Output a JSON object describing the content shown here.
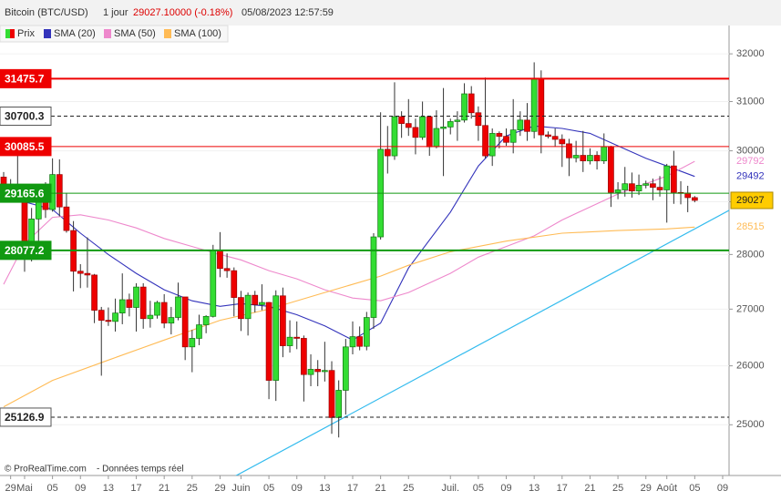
{
  "header": {
    "title": "Bitcoin (BTC/USD)",
    "period": "1 jour",
    "price": "29027.10000 (-0.18%)",
    "datetime": "05/08/2023 12:57:59"
  },
  "footer": {
    "source": "© ProRealTime.com",
    "note": "- Données temps réel"
  },
  "chart_data": {
    "type": "candlestick",
    "name": "Prix",
    "log": true,
    "grid": true,
    "up_color": "#33dd33",
    "down_color": "#ee0000",
    "dates": [
      "2023-04-28",
      "2023-04-29",
      "2023-04-30",
      "2023-05-01",
      "2023-05-02",
      "2023-05-03",
      "2023-05-04",
      "2023-05-05",
      "2023-05-06",
      "2023-05-07",
      "2023-05-08",
      "2023-05-09",
      "2023-05-10",
      "2023-05-11",
      "2023-05-12",
      "2023-05-13",
      "2023-05-14",
      "2023-05-15",
      "2023-05-16",
      "2023-05-17",
      "2023-05-18",
      "2023-05-19",
      "2023-05-20",
      "2023-05-21",
      "2023-05-22",
      "2023-05-23",
      "2023-05-24",
      "2023-05-25",
      "2023-05-26",
      "2023-05-27",
      "2023-05-28",
      "2023-05-29",
      "2023-05-30",
      "2023-05-31",
      "2023-06-01",
      "2023-06-02",
      "2023-06-03",
      "2023-06-04",
      "2023-06-05",
      "2023-06-06",
      "2023-06-07",
      "2023-06-08",
      "2023-06-09",
      "2023-06-10",
      "2023-06-11",
      "2023-06-12",
      "2023-06-13",
      "2023-06-14",
      "2023-06-15",
      "2023-06-16",
      "2023-06-17",
      "2023-06-18",
      "2023-06-19",
      "2023-06-20",
      "2023-06-21",
      "2023-06-22",
      "2023-06-23",
      "2023-06-24",
      "2023-06-25",
      "2023-06-26",
      "2023-06-27",
      "2023-06-28",
      "2023-06-29",
      "2023-06-30",
      "2023-07-01",
      "2023-07-02",
      "2023-07-03",
      "2023-07-04",
      "2023-07-05",
      "2023-07-06",
      "2023-07-07",
      "2023-07-08",
      "2023-07-09",
      "2023-07-10",
      "2023-07-11",
      "2023-07-12",
      "2023-07-13",
      "2023-07-14",
      "2023-07-15",
      "2023-07-16",
      "2023-07-17",
      "2023-07-18",
      "2023-07-19",
      "2023-07-20",
      "2023-07-21",
      "2023-07-22",
      "2023-07-23",
      "2023-07-24",
      "2023-07-25",
      "2023-07-26",
      "2023-07-27",
      "2023-07-28",
      "2023-07-29",
      "2023-07-30",
      "2023-07-31",
      "2023-08-01",
      "2023-08-02",
      "2023-08-03",
      "2023-08-04",
      "2023-08-05"
    ],
    "open": [
      29480,
      29340,
      29250,
      29230,
      28070,
      28670,
      29030,
      28850,
      29530,
      28900,
      28450,
      27690,
      27650,
      27620,
      26980,
      26800,
      26780,
      26930,
      27170,
      27030,
      27400,
      26830,
      26890,
      27120,
      26750,
      26850,
      27220,
      26330,
      26480,
      26720,
      26870,
      28080,
      27740,
      27700,
      27210,
      26830,
      27250,
      27080,
      27120,
      25750,
      27240,
      26350,
      26500,
      26480,
      25850,
      25940,
      25900,
      25920,
      25120,
      25580,
      26330,
      26510,
      26340,
      26850,
      28330,
      30030,
      29900,
      30690,
      30550,
      30470,
      30270,
      30690,
      30080,
      30450,
      30480,
      30590,
      30620,
      31160,
      30770,
      30510,
      29900,
      30350,
      30290,
      30170,
      30420,
      30620,
      30390,
      31480,
      30320,
      30290,
      30230,
      30140,
      29860,
      29910,
      29800,
      29910,
      29800,
      30080,
      29180,
      29230,
      29350,
      29210,
      29320,
      29350,
      29280,
      29230,
      29700,
      29180,
      29170,
      29080
    ],
    "high": [
      29580,
      29440,
      29950,
      29330,
      28880,
      29250,
      29380,
      29850,
      29830,
      29170,
      28630,
      27820,
      28320,
      27640,
      27040,
      27030,
      27190,
      27650,
      27280,
      27470,
      27470,
      27150,
      27150,
      27270,
      27040,
      27480,
      27220,
      26630,
      26900,
      26890,
      28180,
      28420,
      28020,
      27760,
      27330,
      27300,
      27330,
      27450,
      27130,
      27340,
      27390,
      26800,
      26780,
      26530,
      26200,
      26100,
      26420,
      26080,
      25750,
      26470,
      26780,
      26690,
      26950,
      28400,
      30780,
      30500,
      31400,
      30800,
      31050,
      30650,
      31000,
      30700,
      30820,
      31280,
      30650,
      30800,
      31380,
      31320,
      30900,
      31500,
      30450,
      30390,
      30450,
      31050,
      30800,
      30970,
      31820,
      31650,
      30390,
      30450,
      30330,
      30240,
      30200,
      30400,
      30050,
      29990,
      30350,
      30100,
      29380,
      29680,
      29570,
      29530,
      29410,
      29450,
      29500,
      29740,
      30000,
      29400,
      29310,
      29110
    ],
    "low": [
      29000,
      29100,
      29100,
      27680,
      27870,
      28150,
      28690,
      28810,
      28720,
      28410,
      27320,
      27380,
      27390,
      26750,
      25830,
      26700,
      26600,
      26730,
      26870,
      26600,
      26650,
      26670,
      26830,
      26660,
      26550,
      26800,
      26100,
      25890,
      26360,
      26570,
      26850,
      27580,
      27570,
      26870,
      26610,
      26530,
      26940,
      26980,
      25430,
      25400,
      26150,
      26230,
      26290,
      25390,
      25650,
      25650,
      25730,
      24850,
      24790,
      25170,
      26200,
      26270,
      26270,
      26650,
      28280,
      29550,
      29820,
      30260,
      30300,
      29930,
      30220,
      29900,
      30050,
      29500,
      30330,
      30200,
      30570,
      30650,
      30200,
      29850,
      29700,
      30050,
      30100,
      29950,
      30300,
      30200,
      30250,
      29950,
      30250,
      30080,
      29680,
      29500,
      29770,
      29580,
      29730,
      29630,
      29740,
      28900,
      29050,
      29100,
      29080,
      29130,
      29260,
      29030,
      29100,
      28600,
      28960,
      28950,
      28800,
      28990
    ],
    "close": [
      29340,
      29250,
      29230,
      28070,
      28670,
      29030,
      28850,
      29530,
      28900,
      28450,
      27690,
      27650,
      27620,
      26980,
      26800,
      26780,
      26930,
      27170,
      27030,
      27400,
      26830,
      26890,
      27120,
      26750,
      26850,
      27220,
      26330,
      26480,
      26720,
      26870,
      28080,
      27740,
      27700,
      27210,
      26830,
      27250,
      27080,
      27120,
      25750,
      27240,
      26350,
      26500,
      26480,
      25850,
      25940,
      25900,
      25920,
      25120,
      25580,
      26330,
      26510,
      26340,
      26850,
      28330,
      30030,
      29900,
      30690,
      30550,
      30470,
      30270,
      30690,
      30080,
      30450,
      30480,
      30590,
      30620,
      31160,
      30770,
      30510,
      29900,
      30350,
      30290,
      30170,
      30420,
      30620,
      30390,
      31480,
      30320,
      30290,
      30230,
      30140,
      29860,
      29910,
      29800,
      29910,
      29800,
      30080,
      29180,
      29230,
      29350,
      29210,
      29320,
      29350,
      29280,
      29230,
      29700,
      29180,
      29170,
      29080,
      29027
    ],
    "series": [
      {
        "name": "SMA (20)",
        "color": "#3333bb",
        "x": [
          "2023-04-28",
          "2023-05-05",
          "2023-05-09",
          "2023-05-13",
          "2023-05-17",
          "2023-05-21",
          "2023-05-25",
          "2023-05-29",
          "2023-06-01",
          "2023-06-05",
          "2023-06-09",
          "2023-06-13",
          "2023-06-17",
          "2023-06-21",
          "2023-06-25",
          "2023-07-01",
          "2023-07-05",
          "2023-07-09",
          "2023-07-13",
          "2023-07-17",
          "2023-07-21",
          "2023-07-25",
          "2023-07-29",
          "2023-08-01",
          "2023-08-05"
        ],
        "values": [
          29110,
          28850,
          28400,
          28000,
          27650,
          27350,
          27150,
          27050,
          27100,
          27050,
          26900,
          26700,
          26450,
          26750,
          27750,
          28800,
          29700,
          30300,
          30500,
          30450,
          30350,
          30100,
          29850,
          29700,
          29492
        ]
      },
      {
        "name": "SMA (50)",
        "color": "#ee88cc",
        "x": [
          "2023-04-28",
          "2023-05-01",
          "2023-05-05",
          "2023-05-09",
          "2023-05-13",
          "2023-05-17",
          "2023-05-21",
          "2023-05-25",
          "2023-05-29",
          "2023-06-01",
          "2023-06-05",
          "2023-06-09",
          "2023-06-13",
          "2023-06-17",
          "2023-06-21",
          "2023-06-25",
          "2023-07-01",
          "2023-07-05",
          "2023-07-09",
          "2023-07-13",
          "2023-07-17",
          "2023-07-21",
          "2023-07-25",
          "2023-07-29",
          "2023-08-01",
          "2023-08-05"
        ],
        "values": [
          27450,
          28200,
          28700,
          28750,
          28650,
          28500,
          28300,
          28150,
          28000,
          27900,
          27700,
          27550,
          27350,
          27200,
          27150,
          27300,
          27650,
          27950,
          28150,
          28350,
          28650,
          28900,
          29150,
          29350,
          29500,
          29792
        ]
      },
      {
        "name": "SMA (100)",
        "color": "#ffbb55",
        "x": [
          "2023-04-28",
          "2023-05-05",
          "2023-05-13",
          "2023-05-21",
          "2023-05-29",
          "2023-06-05",
          "2023-06-13",
          "2023-06-21",
          "2023-06-25",
          "2023-07-01",
          "2023-07-09",
          "2023-07-17",
          "2023-07-25",
          "2023-08-01",
          "2023-08-05"
        ],
        "values": [
          25300,
          25750,
          26100,
          26450,
          26800,
          27000,
          27300,
          27600,
          27800,
          28050,
          28250,
          28400,
          28450,
          28480,
          28515
        ]
      }
    ],
    "levels": [
      {
        "value": 31475.7,
        "color": "#ee0000",
        "style": "thick"
      },
      {
        "value": 30700.3,
        "color": "#222222",
        "style": "dashed"
      },
      {
        "value": 30085.5,
        "color": "#ee0000",
        "style": "thin"
      },
      {
        "value": 29165.6,
        "color": "#119911",
        "style": "thin"
      },
      {
        "value": 28077.2,
        "color": "#119911",
        "style": "thick"
      },
      {
        "value": 25126.9,
        "color": "#222222",
        "style": "dashed"
      }
    ],
    "trendline": {
      "color": "#33bbee",
      "x": [
        "2023-05-31",
        "2023-08-10"
      ],
      "values": [
        24150,
        28840
      ]
    },
    "current_color": "#ffcc00",
    "ylim": [
      24170,
      32570
    ],
    "yticks": [
      25000,
      26000,
      27000,
      28000,
      29000,
      30000,
      31000,
      32000
    ],
    "xticks": [
      {
        "value": "2023-04-29",
        "label": "29"
      },
      {
        "value": "2023-05-01",
        "label": "Mai"
      },
      {
        "value": "2023-05-05",
        "label": "05"
      },
      {
        "value": "2023-05-09",
        "label": "09"
      },
      {
        "value": "2023-05-13",
        "label": "13"
      },
      {
        "value": "2023-05-17",
        "label": "17"
      },
      {
        "value": "2023-05-21",
        "label": "21"
      },
      {
        "value": "2023-05-25",
        "label": "25"
      },
      {
        "value": "2023-05-29",
        "label": "29"
      },
      {
        "value": "2023-06-01",
        "label": "Juin"
      },
      {
        "value": "2023-06-05",
        "label": "05"
      },
      {
        "value": "2023-06-09",
        "label": "09"
      },
      {
        "value": "2023-06-13",
        "label": "13"
      },
      {
        "value": "2023-06-17",
        "label": "17"
      },
      {
        "value": "2023-06-21",
        "label": "21"
      },
      {
        "value": "2023-06-25",
        "label": "25"
      },
      {
        "value": "2023-07-01",
        "label": "Juil."
      },
      {
        "value": "2023-07-05",
        "label": "05"
      },
      {
        "value": "2023-07-09",
        "label": "09"
      },
      {
        "value": "2023-07-13",
        "label": "13"
      },
      {
        "value": "2023-07-17",
        "label": "17"
      },
      {
        "value": "2023-07-21",
        "label": "21"
      },
      {
        "value": "2023-07-25",
        "label": "25"
      },
      {
        "value": "2023-07-29",
        "label": "29"
      },
      {
        "value": "2023-08-01",
        "label": "Août"
      },
      {
        "value": "2023-08-05",
        "label": "05"
      },
      {
        "value": "2023-08-09",
        "label": "09"
      }
    ]
  }
}
